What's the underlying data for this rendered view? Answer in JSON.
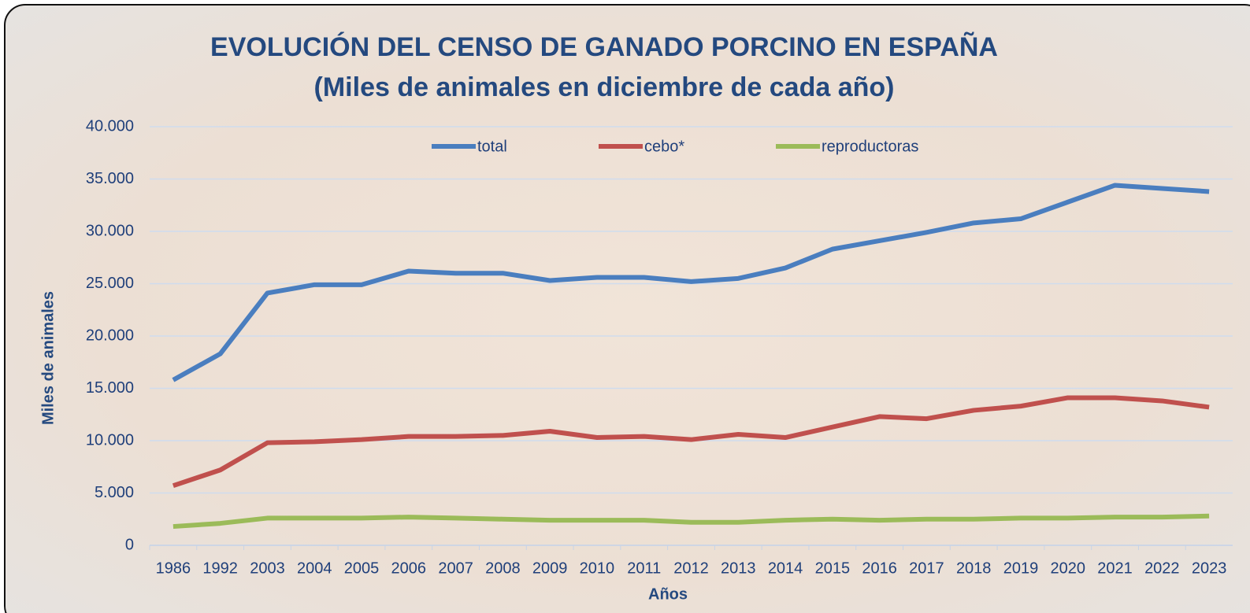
{
  "chart_data": {
    "type": "line",
    "title": "EVOLUCIÓN DEL CENSO DE GANADO PORCINO EN ESPAÑA",
    "subtitle": "(Miles de animales en diciembre de cada año)",
    "x_label": "Años",
    "y_label": "Miles de animales",
    "categories": [
      "1986",
      "1992",
      "2003",
      "2004",
      "2005",
      "2006",
      "2007",
      "2008",
      "2009",
      "2010",
      "2011",
      "2012",
      "2013",
      "2014",
      "2015",
      "2016",
      "2017",
      "2018",
      "2019",
      "2020",
      "2021",
      "2022",
      "2023"
    ],
    "series": [
      {
        "name": "total",
        "color": "#4a7ebf",
        "values": [
          15800,
          18300,
          24100,
          24900,
          24900,
          26200,
          26000,
          26000,
          25300,
          25600,
          25600,
          25200,
          25500,
          26500,
          28300,
          29100,
          29900,
          30800,
          31200,
          32800,
          34400,
          34100,
          33800
        ]
      },
      {
        "name": "cebo*",
        "color": "#c0504d",
        "values": [
          5700,
          7200,
          9800,
          9900,
          10100,
          10400,
          10400,
          10500,
          10900,
          10300,
          10400,
          10100,
          10600,
          10300,
          11300,
          12300,
          12100,
          12900,
          13300,
          14100,
          14100,
          13800,
          13200
        ]
      },
      {
        "name": "reproductoras",
        "color": "#9bbb59",
        "values": [
          1800,
          2100,
          2600,
          2600,
          2600,
          2700,
          2600,
          2500,
          2400,
          2400,
          2400,
          2200,
          2200,
          2400,
          2500,
          2400,
          2500,
          2500,
          2600,
          2600,
          2700,
          2700,
          2800
        ]
      }
    ],
    "ylim": [
      0,
      40000
    ],
    "yticks": [
      0,
      {
        "value": 5000,
        "label": "5.000"
      },
      {
        "value": 10000,
        "label": "10.000"
      },
      {
        "value": 15000,
        "label": "15.000"
      },
      {
        "value": 20000,
        "label": "20.000"
      },
      {
        "value": 25000,
        "label": "25.000"
      },
      {
        "value": 30000,
        "label": "30.000"
      },
      {
        "value": 35000,
        "label": "35.000"
      },
      {
        "value": 40000,
        "label": "40.000"
      }
    ],
    "grid": true,
    "legend": "top"
  }
}
